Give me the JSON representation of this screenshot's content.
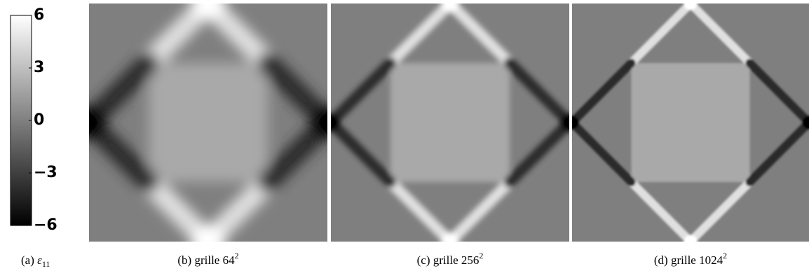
{
  "colorbar": {
    "lim": [
      -6,
      6
    ],
    "ticks": [
      6,
      3,
      0,
      {
        "value": -3,
        "label": "−3"
      },
      {
        "value": -6,
        "label": "−6"
      }
    ]
  },
  "captions": [
    {
      "label": "(a)",
      "symbol": "ε",
      "subscript": "11"
    },
    {
      "label": "(b)",
      "text": "grille 64",
      "superscript": "2"
    },
    {
      "label": "(c)",
      "text": "grille 256",
      "superscript": "2"
    },
    {
      "label": "(d)",
      "text": "grille 1024",
      "superscript": "2"
    }
  ]
}
